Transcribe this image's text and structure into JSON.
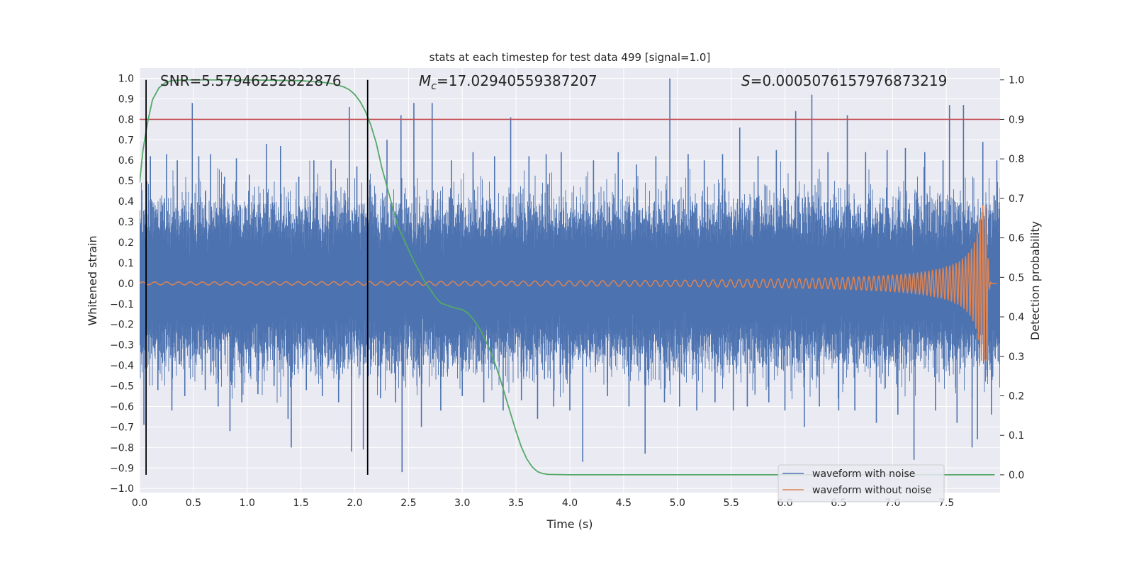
{
  "chart_data": {
    "type": "line",
    "title": "stats at each timestep for test data 499 [signal=1.0]",
    "xlabel": "Time (s)",
    "ylabel": "Whitened strain",
    "ylabel_right": "Detection probability",
    "xlim": [
      0.0,
      8.0
    ],
    "ylim": [
      -1.02,
      1.05
    ],
    "ylim_right": [
      -0.045,
      1.03
    ],
    "x_ticks": [
      "0.0",
      "0.5",
      "1.0",
      "1.5",
      "2.0",
      "2.5",
      "3.0",
      "3.5",
      "4.0",
      "4.5",
      "5.0",
      "5.5",
      "6.0",
      "6.5",
      "7.0",
      "7.5"
    ],
    "y_ticks": [
      "1.0",
      "0.9",
      "0.8",
      "0.7",
      "0.6",
      "0.5",
      "0.4",
      "0.3",
      "0.2",
      "0.1",
      "0.0",
      "−0.1",
      "−0.2",
      "−0.3",
      "−0.4",
      "−0.5",
      "−0.6",
      "−0.7",
      "−0.8",
      "−0.9",
      "−1.0"
    ],
    "y_ticks_right": [
      "1.0",
      "0.9",
      "0.8",
      "0.7",
      "0.6",
      "0.5",
      "0.4",
      "0.3",
      "0.2",
      "0.1",
      "0.0"
    ],
    "annotations": {
      "snr": "SNR=5.57946252822876",
      "mc_symbol": "M",
      "mc_sub": "c",
      "mc_value": "=17.02940559387207",
      "s_symbol": "S",
      "s_value": "=0.0005076157976873219"
    },
    "threshold": {
      "value": 0.9,
      "axis": "right",
      "color": "#c44e52"
    },
    "vertical_markers": [
      0.06,
      2.12
    ],
    "grid": true,
    "legend_position": "lower-right",
    "series": [
      {
        "name": "waveform with noise",
        "color": "#4c72b0",
        "x_range": [
          0.0,
          8.0
        ],
        "typical_envelope": 0.35,
        "peaks": [
          {
            "x": 0.04,
            "y": -0.69
          },
          {
            "x": 0.1,
            "y": 0.62
          },
          {
            "x": 0.17,
            "y": -0.52
          },
          {
            "x": 0.25,
            "y": 0.63
          },
          {
            "x": 0.3,
            "y": -0.62
          },
          {
            "x": 0.35,
            "y": 0.6
          },
          {
            "x": 0.42,
            "y": -0.55
          },
          {
            "x": 0.49,
            "y": 0.88
          },
          {
            "x": 0.55,
            "y": 0.62
          },
          {
            "x": 0.61,
            "y": -0.52
          },
          {
            "x": 0.66,
            "y": 0.63
          },
          {
            "x": 0.73,
            "y": -0.6
          },
          {
            "x": 0.79,
            "y": 0.52
          },
          {
            "x": 0.84,
            "y": -0.72
          },
          {
            "x": 0.9,
            "y": 0.61
          },
          {
            "x": 0.95,
            "y": -0.58
          },
          {
            "x": 1.02,
            "y": 0.53
          },
          {
            "x": 1.1,
            "y": -0.54
          },
          {
            "x": 1.18,
            "y": 0.68
          },
          {
            "x": 1.25,
            "y": -0.5
          },
          {
            "x": 1.31,
            "y": 0.67
          },
          {
            "x": 1.38,
            "y": -0.66
          },
          {
            "x": 1.41,
            "y": -0.8
          },
          {
            "x": 1.48,
            "y": 0.52
          },
          {
            "x": 1.55,
            "y": -0.52
          },
          {
            "x": 1.62,
            "y": 0.6
          },
          {
            "x": 1.7,
            "y": -0.55
          },
          {
            "x": 1.78,
            "y": 0.6
          },
          {
            "x": 1.85,
            "y": -0.58
          },
          {
            "x": 1.95,
            "y": 0.86
          },
          {
            "x": 1.97,
            "y": -0.82
          },
          {
            "x": 2.02,
            "y": 0.57
          },
          {
            "x": 2.08,
            "y": -0.81
          },
          {
            "x": 2.14,
            "y": 0.48
          },
          {
            "x": 2.24,
            "y": -0.56
          },
          {
            "x": 2.3,
            "y": 0.7
          },
          {
            "x": 2.38,
            "y": -0.58
          },
          {
            "x": 2.43,
            "y": 0.82
          },
          {
            "x": 2.44,
            "y": -0.92
          },
          {
            "x": 2.55,
            "y": 0.88
          },
          {
            "x": 2.62,
            "y": -0.7
          },
          {
            "x": 2.72,
            "y": 0.88
          },
          {
            "x": 2.8,
            "y": -0.62
          },
          {
            "x": 2.9,
            "y": 0.6
          },
          {
            "x": 3.0,
            "y": -0.55
          },
          {
            "x": 3.1,
            "y": 0.64
          },
          {
            "x": 3.2,
            "y": -0.58
          },
          {
            "x": 3.3,
            "y": 0.62
          },
          {
            "x": 3.38,
            "y": -0.62
          },
          {
            "x": 3.45,
            "y": 0.81
          },
          {
            "x": 3.55,
            "y": -0.57
          },
          {
            "x": 3.62,
            "y": 0.62
          },
          {
            "x": 3.7,
            "y": -0.66
          },
          {
            "x": 3.78,
            "y": 0.63
          },
          {
            "x": 3.85,
            "y": -0.6
          },
          {
            "x": 3.92,
            "y": 0.64
          },
          {
            "x": 4.0,
            "y": -0.62
          },
          {
            "x": 4.12,
            "y": -0.87
          },
          {
            "x": 4.22,
            "y": 0.6
          },
          {
            "x": 4.35,
            "y": -0.55
          },
          {
            "x": 4.45,
            "y": 0.64
          },
          {
            "x": 4.55,
            "y": -0.6
          },
          {
            "x": 4.62,
            "y": 0.58
          },
          {
            "x": 4.7,
            "y": -0.83
          },
          {
            "x": 4.8,
            "y": 0.62
          },
          {
            "x": 4.88,
            "y": -0.58
          },
          {
            "x": 4.93,
            "y": 1.0
          },
          {
            "x": 5.02,
            "y": -0.6
          },
          {
            "x": 5.1,
            "y": 0.63
          },
          {
            "x": 5.18,
            "y": -0.62
          },
          {
            "x": 5.25,
            "y": 0.6
          },
          {
            "x": 5.35,
            "y": -0.58
          },
          {
            "x": 5.42,
            "y": 0.63
          },
          {
            "x": 5.52,
            "y": -0.62
          },
          {
            "x": 5.58,
            "y": 0.76
          },
          {
            "x": 5.65,
            "y": -0.6
          },
          {
            "x": 5.75,
            "y": 0.62
          },
          {
            "x": 5.85,
            "y": -0.58
          },
          {
            "x": 5.92,
            "y": 0.65
          },
          {
            "x": 6.0,
            "y": -0.62
          },
          {
            "x": 6.1,
            "y": 0.84
          },
          {
            "x": 6.18,
            "y": -0.7
          },
          {
            "x": 6.25,
            "y": 0.92
          },
          {
            "x": 6.32,
            "y": -0.6
          },
          {
            "x": 6.4,
            "y": 0.64
          },
          {
            "x": 6.5,
            "y": -0.62
          },
          {
            "x": 6.58,
            "y": 0.82
          },
          {
            "x": 6.65,
            "y": -0.62
          },
          {
            "x": 6.75,
            "y": 0.64
          },
          {
            "x": 6.85,
            "y": -0.68
          },
          {
            "x": 6.95,
            "y": 0.65
          },
          {
            "x": 7.05,
            "y": -0.64
          },
          {
            "x": 7.12,
            "y": 0.66
          },
          {
            "x": 7.2,
            "y": -0.86
          },
          {
            "x": 7.3,
            "y": 0.64
          },
          {
            "x": 7.4,
            "y": -0.62
          },
          {
            "x": 7.47,
            "y": 0.6
          },
          {
            "x": 7.53,
            "y": 0.87
          },
          {
            "x": 7.6,
            "y": -0.68
          },
          {
            "x": 7.66,
            "y": 0.87
          },
          {
            "x": 7.74,
            "y": -0.8
          },
          {
            "x": 7.79,
            "y": -0.76
          },
          {
            "x": 7.84,
            "y": 0.69
          },
          {
            "x": 7.92,
            "y": -0.64
          },
          {
            "x": 7.97,
            "y": 0.6
          }
        ]
      },
      {
        "name": "waveform without noise",
        "color": "#dd8452",
        "kind": "chirp",
        "x_range": [
          0.0,
          7.97
        ],
        "ringdown_end": 7.88,
        "peak_amplitude": 0.38,
        "start_amplitude": 0.007,
        "start_frequency_hz": 9,
        "end_frequency_hz": 40
      },
      {
        "name": "detection probability",
        "axis": "right",
        "color": "#55a868",
        "x": [
          0.0,
          0.03,
          0.06,
          0.08,
          0.12,
          0.18,
          0.24,
          0.3,
          0.4,
          0.6,
          1.0,
          1.5,
          1.7,
          1.8,
          1.9,
          1.95,
          2.0,
          2.05,
          2.1,
          2.15,
          2.2,
          2.25,
          2.3,
          2.35,
          2.4,
          2.45,
          2.5,
          2.55,
          2.6,
          2.65,
          2.7,
          2.75,
          2.8,
          2.9,
          3.0,
          3.05,
          3.1,
          3.15,
          3.2,
          3.25,
          3.3,
          3.35,
          3.4,
          3.45,
          3.5,
          3.55,
          3.6,
          3.65,
          3.7,
          3.75,
          3.8,
          4.0,
          5.0,
          6.0,
          7.0,
          7.95
        ],
        "y": [
          0.74,
          0.82,
          0.87,
          0.9,
          0.95,
          0.98,
          0.993,
          0.998,
          1.0,
          1.0,
          1.0,
          0.998,
          0.994,
          0.99,
          0.982,
          0.975,
          0.963,
          0.945,
          0.92,
          0.885,
          0.84,
          0.78,
          0.73,
          0.68,
          0.63,
          0.6,
          0.57,
          0.54,
          0.515,
          0.49,
          0.47,
          0.45,
          0.435,
          0.425,
          0.418,
          0.41,
          0.395,
          0.375,
          0.35,
          0.32,
          0.285,
          0.245,
          0.2,
          0.155,
          0.11,
          0.07,
          0.04,
          0.02,
          0.008,
          0.003,
          0.001,
          0.0,
          0.0,
          0.0,
          0.0,
          0.0
        ]
      }
    ]
  }
}
